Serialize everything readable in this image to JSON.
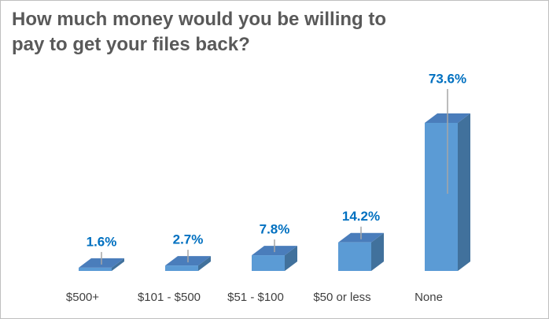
{
  "chart_data": {
    "type": "bar3d",
    "title": "How much money would you be willing to pay to get your files back?",
    "categories": [
      "$500+",
      "$101 - $500",
      "$51 - $100",
      "$50 or less",
      "None"
    ],
    "values": [
      1.6,
      2.7,
      7.8,
      14.2,
      73.6
    ],
    "value_labels": [
      "1.6%",
      "2.7%",
      "7.8%",
      "14.2%",
      "73.6%"
    ],
    "color": "#5b9bd5"
  }
}
